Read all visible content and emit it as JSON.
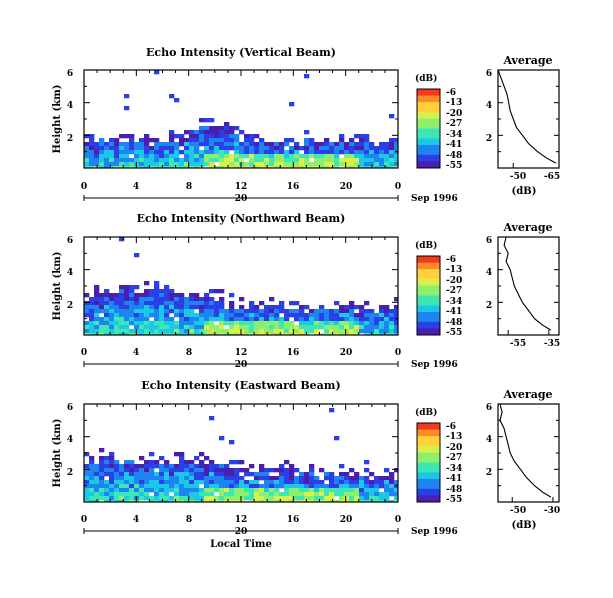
{
  "figure": {
    "xlabel": "Local Time",
    "date_label": "Sep 1996",
    "colorbar_unit": "(dB)",
    "average_title": "Average",
    "average_xlabel": "(dB)",
    "colormap": [
      "#4a1fb0",
      "#2b3fe6",
      "#1d84f0",
      "#1bc8e6",
      "#3ee6b4",
      "#8cf06e",
      "#d8f04c",
      "#ffd23c",
      "#ff8a28",
      "#f23a1e"
    ]
  },
  "chart_data": [
    {
      "type": "heatmap",
      "title": "Echo Intensity (Vertical Beam)",
      "ylabel": "Height (km)",
      "x_ticks": [
        "0",
        "4",
        "8",
        "12",
        "16",
        "20",
        "0"
      ],
      "day_label": "20",
      "y_ticks": [
        "6",
        "4",
        "2"
      ],
      "xlim": [
        0,
        24
      ],
      "ylim": [
        0,
        6
      ],
      "colorbar": {
        "ticks": [
          "-6",
          "-13",
          "-20",
          "-27",
          "-34",
          "-41",
          "-48",
          "-55"
        ],
        "range": [
          -55,
          -6
        ]
      },
      "echo_top_km": [
        1.7,
        1.6,
        1.7,
        1.8,
        1.6,
        1.7,
        1.8,
        1.7,
        2.2,
        2.6,
        2.5,
        2.4,
        2.0,
        1.8,
        1.7,
        1.6,
        1.6,
        1.7,
        1.6,
        1.7,
        1.6,
        1.7,
        1.6,
        1.7
      ],
      "average": {
        "x_ticks": [
          "-50",
          "-65"
        ],
        "xlim": [
          -45,
          -65
        ],
        "y_ticks": [
          "6",
          "4",
          "2"
        ],
        "profile": [
          [
            -45,
            6.0
          ],
          [
            -46,
            5.5
          ],
          [
            -47,
            5.0
          ],
          [
            -48,
            4.5
          ],
          [
            -48.5,
            4.0
          ],
          [
            -49,
            3.5
          ],
          [
            -50,
            3.0
          ],
          [
            -51,
            2.5
          ],
          [
            -53,
            2.0
          ],
          [
            -55,
            1.5
          ],
          [
            -58,
            1.0
          ],
          [
            -61,
            0.6
          ],
          [
            -64,
            0.3
          ]
        ]
      }
    },
    {
      "type": "heatmap",
      "title": "Echo Intensity (Northward Beam)",
      "ylabel": "Height (km)",
      "x_ticks": [
        "0",
        "4",
        "8",
        "12",
        "16",
        "20",
        "0"
      ],
      "day_label": "20",
      "y_ticks": [
        "6",
        "4",
        "2"
      ],
      "xlim": [
        0,
        24
      ],
      "ylim": [
        0,
        6
      ],
      "colorbar": {
        "ticks": [
          "-6",
          "-13",
          "-20",
          "-27",
          "-34",
          "-41",
          "-48",
          "-55"
        ],
        "range": [
          -55,
          -6
        ]
      },
      "echo_top_km": [
        2.4,
        2.5,
        2.6,
        2.8,
        2.7,
        2.6,
        2.7,
        2.5,
        2.4,
        2.3,
        2.2,
        2.1,
        2.0,
        1.9,
        1.8,
        1.7,
        1.6,
        1.8,
        1.7,
        1.6,
        1.7,
        1.6,
        1.6,
        1.7
      ],
      "average": {
        "x_ticks": [
          "-55",
          "-35"
        ],
        "xlim": [
          -60,
          -30
        ],
        "y_ticks": [
          "6",
          "4",
          "2"
        ],
        "profile": [
          [
            -56,
            6.0
          ],
          [
            -57,
            5.5
          ],
          [
            -55,
            5.0
          ],
          [
            -56,
            4.5
          ],
          [
            -54,
            4.0
          ],
          [
            -53,
            3.5
          ],
          [
            -52,
            3.0
          ],
          [
            -50,
            2.5
          ],
          [
            -48,
            2.0
          ],
          [
            -45,
            1.5
          ],
          [
            -42,
            1.0
          ],
          [
            -38,
            0.6
          ],
          [
            -34,
            0.3
          ]
        ]
      }
    },
    {
      "type": "heatmap",
      "title": "Echo Intensity (Eastward Beam)",
      "ylabel": "Height (km)",
      "x_ticks": [
        "0",
        "4",
        "8",
        "12",
        "16",
        "20",
        "0"
      ],
      "day_label": "20",
      "y_ticks": [
        "6",
        "4",
        "2"
      ],
      "xlim": [
        0,
        24
      ],
      "ylim": [
        0,
        6
      ],
      "colorbar": {
        "ticks": [
          "-6",
          "-13",
          "-20",
          "-27",
          "-34",
          "-41",
          "-48",
          "-55"
        ],
        "range": [
          -55,
          -6
        ]
      },
      "echo_top_km": [
        2.5,
        2.6,
        2.7,
        2.6,
        2.5,
        2.4,
        2.3,
        2.5,
        2.6,
        2.4,
        2.3,
        2.2,
        2.1,
        2.0,
        1.9,
        2.1,
        1.9,
        1.8,
        1.7,
        1.6,
        1.7,
        1.6,
        1.6,
        1.7
      ],
      "average": {
        "x_ticks": [
          "-50",
          "-30"
        ],
        "xlim": [
          -57,
          -27
        ],
        "y_ticks": [
          "6",
          "4",
          "2"
        ],
        "profile": [
          [
            -56,
            6.0
          ],
          [
            -55,
            5.5
          ],
          [
            -56,
            5.0
          ],
          [
            -54,
            4.5
          ],
          [
            -53,
            4.0
          ],
          [
            -52,
            3.5
          ],
          [
            -51,
            3.0
          ],
          [
            -49,
            2.5
          ],
          [
            -46,
            2.0
          ],
          [
            -43,
            1.5
          ],
          [
            -39,
            1.0
          ],
          [
            -35,
            0.6
          ],
          [
            -31,
            0.3
          ]
        ]
      }
    }
  ]
}
